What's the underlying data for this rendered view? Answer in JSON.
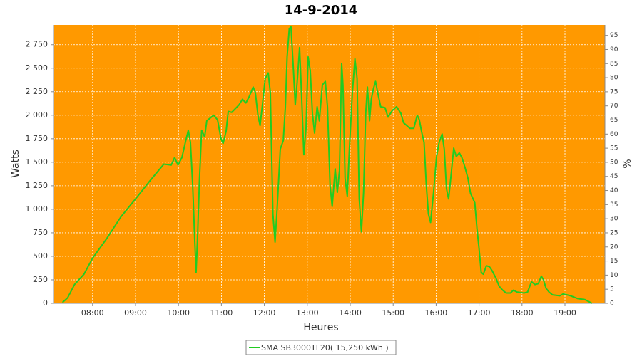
{
  "chart_data": {
    "type": "line",
    "title": "14-9-2014",
    "x_label": "Heures",
    "y_label": "Watts",
    "y2_label": "%",
    "background": "#ff9900",
    "grid": true,
    "x": [
      7.3,
      7.42,
      7.58,
      7.8,
      8.0,
      8.33,
      8.66,
      9.0,
      9.33,
      9.66,
      9.83,
      9.91,
      9.99,
      10.08,
      10.16,
      10.23,
      10.28,
      10.33,
      10.38,
      10.41,
      10.44,
      10.49,
      10.54,
      10.61,
      10.66,
      10.82,
      10.91,
      10.99,
      11.04,
      11.11,
      11.16,
      11.24,
      11.41,
      11.49,
      11.57,
      11.65,
      11.74,
      11.79,
      11.85,
      11.9,
      11.95,
      12.02,
      12.09,
      12.14,
      12.2,
      12.25,
      12.3,
      12.37,
      12.44,
      12.49,
      12.53,
      12.58,
      12.62,
      12.67,
      12.72,
      12.77,
      12.82,
      12.87,
      12.92,
      12.97,
      13.02,
      13.07,
      13.12,
      13.17,
      13.23,
      13.28,
      13.35,
      13.42,
      13.47,
      13.53,
      13.58,
      13.65,
      13.7,
      13.75,
      13.8,
      13.83,
      13.88,
      13.93,
      13.98,
      14.05,
      14.11,
      14.16,
      14.21,
      14.26,
      14.31,
      14.36,
      14.4,
      14.45,
      14.49,
      14.54,
      14.59,
      14.64,
      14.71,
      14.81,
      14.88,
      14.98,
      15.08,
      15.18,
      15.24,
      15.39,
      15.48,
      15.56,
      15.61,
      15.66,
      15.72,
      15.77,
      15.82,
      15.87,
      15.94,
      16.01,
      16.07,
      16.14,
      16.19,
      16.24,
      16.29,
      16.34,
      16.41,
      16.47,
      16.54,
      16.6,
      16.67,
      16.74,
      16.8,
      16.9,
      16.95,
      17.0,
      17.05,
      17.1,
      17.17,
      17.24,
      17.3,
      17.39,
      17.47,
      17.55,
      17.63,
      17.73,
      17.8,
      17.88,
      18.05,
      18.13,
      18.22,
      18.3,
      18.38,
      18.45,
      18.5,
      18.56,
      18.63,
      18.71,
      18.88,
      18.96,
      19.13,
      19.3,
      19.46,
      19.55,
      19.63
    ],
    "series": [
      {
        "name": "SMA SB3000TL20( 15,250 kWh )",
        "color": "#22cc22",
        "values": [
          10,
          60,
          200,
          310,
          480,
          690,
          920,
          1110,
          1300,
          1480,
          1470,
          1550,
          1470,
          1550,
          1710,
          1840,
          1710,
          1260,
          650,
          330,
          650,
          1330,
          1840,
          1770,
          1940,
          2000,
          1950,
          1750,
          1700,
          1830,
          2040,
          2030,
          2110,
          2170,
          2130,
          2200,
          2300,
          2240,
          2000,
          1890,
          2090,
          2390,
          2450,
          2240,
          950,
          650,
          1030,
          1640,
          1730,
          2090,
          2620,
          2920,
          2940,
          2550,
          2110,
          2390,
          2720,
          2170,
          1580,
          1860,
          2620,
          2470,
          2020,
          1810,
          2090,
          1940,
          2320,
          2360,
          2090,
          1260,
          1030,
          1430,
          1180,
          1410,
          2550,
          2320,
          1330,
          1140,
          1640,
          2240,
          2600,
          2390,
          1110,
          760,
          1180,
          2020,
          2300,
          1940,
          2170,
          2280,
          2360,
          2240,
          2090,
          2080,
          1980,
          2050,
          2090,
          2020,
          1920,
          1860,
          1860,
          2000,
          1950,
          1830,
          1710,
          1260,
          950,
          860,
          1180,
          1560,
          1710,
          1800,
          1640,
          1220,
          1110,
          1330,
          1650,
          1560,
          1600,
          1550,
          1450,
          1330,
          1170,
          1070,
          800,
          580,
          330,
          310,
          400,
          390,
          350,
          270,
          180,
          140,
          110,
          110,
          140,
          120,
          110,
          120,
          230,
          200,
          210,
          290,
          250,
          160,
          120,
          90,
          80,
          100,
          80,
          50,
          40,
          20,
          0
        ]
      }
    ],
    "xlim": [
      7.09,
      19.93
    ],
    "xticks": [
      {
        "value": 8,
        "label": "08:00"
      },
      {
        "value": 9,
        "label": "09:00"
      },
      {
        "value": 10,
        "label": "10:00"
      },
      {
        "value": 11,
        "label": "11:00"
      },
      {
        "value": 12,
        "label": "12:00"
      },
      {
        "value": 13,
        "label": "13:00"
      },
      {
        "value": 14,
        "label": "14:00"
      },
      {
        "value": 15,
        "label": "15:00"
      },
      {
        "value": 16,
        "label": "16:00"
      },
      {
        "value": 17,
        "label": "17:00"
      },
      {
        "value": 18,
        "label": "18:00"
      },
      {
        "value": 19,
        "label": "19:00"
      }
    ],
    "ylim": [
      0,
      2960
    ],
    "yticks": [
      0,
      250,
      500,
      750,
      {
        "value": 1000,
        "label": "1 000"
      },
      {
        "value": 1250,
        "label": "1 250"
      },
      {
        "value": 1500,
        "label": "1 500"
      },
      {
        "value": 1750,
        "label": "1 750"
      },
      {
        "value": 2000,
        "label": "2 000"
      },
      {
        "value": 2250,
        "label": "2 250"
      },
      {
        "value": 2500,
        "label": "2 500"
      },
      {
        "value": 2750,
        "label": "2 750"
      }
    ],
    "y2lim": [
      0,
      98.7
    ],
    "y2ticks": [
      0,
      5,
      10,
      15,
      20,
      25,
      30,
      35,
      40,
      45,
      50,
      55,
      60,
      65,
      70,
      75,
      80,
      85,
      90,
      95
    ]
  }
}
